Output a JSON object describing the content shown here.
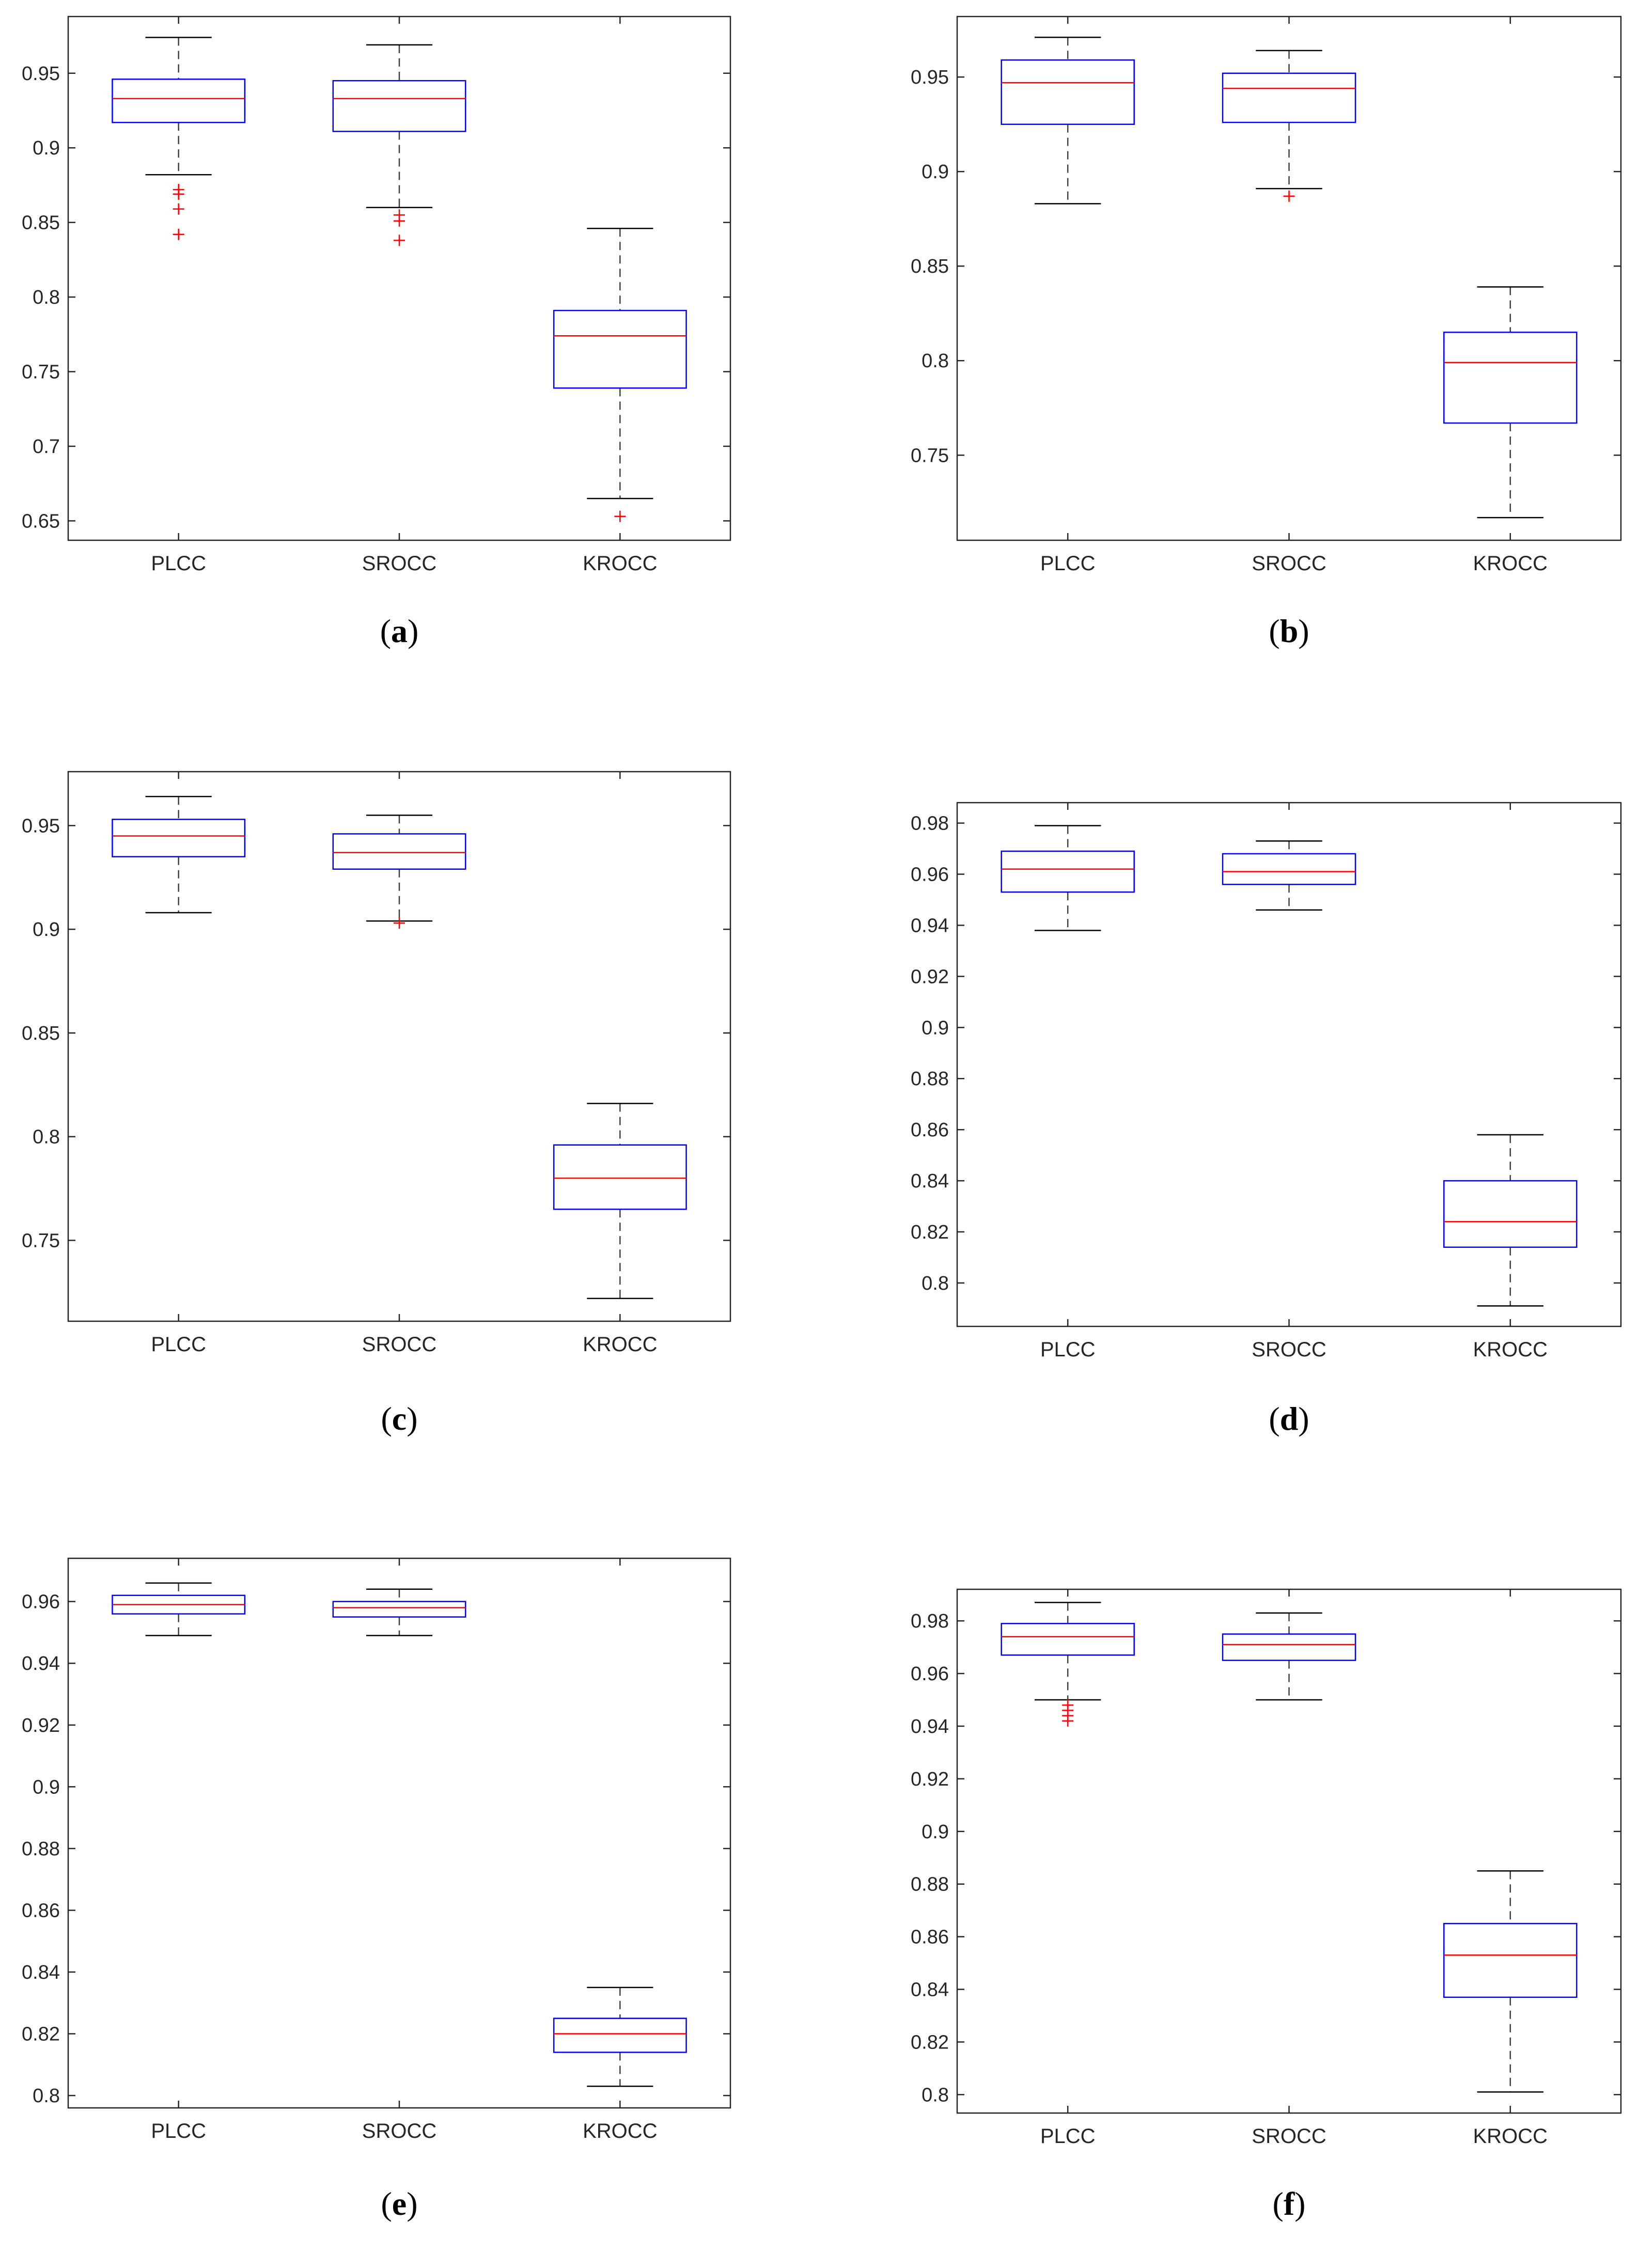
{
  "chart_data": [
    {
      "type": "boxplot",
      "panel_label": "a",
      "categories": [
        "PLCC",
        "SROCC",
        "KROCC"
      ],
      "ylim": [
        0.637,
        0.988
      ],
      "yticks": [
        0.65,
        0.7,
        0.75,
        0.8,
        0.85,
        0.9,
        0.95
      ],
      "ytick_labels": [
        "0.65",
        "0.7",
        "0.75",
        "0.8",
        "0.85",
        "0.9",
        "0.95"
      ],
      "boxes": [
        {
          "name": "PLCC",
          "whisker_low": 0.882,
          "q1": 0.917,
          "median": 0.933,
          "q3": 0.946,
          "whisker_high": 0.974,
          "outliers": [
            0.842,
            0.859,
            0.869,
            0.872
          ]
        },
        {
          "name": "SROCC",
          "whisker_low": 0.86,
          "q1": 0.911,
          "median": 0.933,
          "q3": 0.945,
          "whisker_high": 0.969,
          "outliers": [
            0.838,
            0.851,
            0.855
          ]
        },
        {
          "name": "KROCC",
          "whisker_low": 0.665,
          "q1": 0.739,
          "median": 0.774,
          "q3": 0.791,
          "whisker_high": 0.846,
          "outliers": [
            0.653
          ]
        }
      ]
    },
    {
      "type": "boxplot",
      "panel_label": "b",
      "categories": [
        "PLCC",
        "SROCC",
        "KROCC"
      ],
      "ylim": [
        0.705,
        0.982
      ],
      "yticks": [
        0.75,
        0.8,
        0.85,
        0.9,
        0.95
      ],
      "ytick_labels": [
        "0.75",
        "0.8",
        "0.85",
        "0.9",
        "0.95"
      ],
      "boxes": [
        {
          "name": "PLCC",
          "whisker_low": 0.883,
          "q1": 0.925,
          "median": 0.947,
          "q3": 0.959,
          "whisker_high": 0.971,
          "outliers": []
        },
        {
          "name": "SROCC",
          "whisker_low": 0.891,
          "q1": 0.926,
          "median": 0.944,
          "q3": 0.952,
          "whisker_high": 0.964,
          "outliers": [
            0.887
          ]
        },
        {
          "name": "KROCC",
          "whisker_low": 0.717,
          "q1": 0.767,
          "median": 0.799,
          "q3": 0.815,
          "whisker_high": 0.839,
          "outliers": []
        }
      ]
    },
    {
      "type": "boxplot",
      "panel_label": "c",
      "categories": [
        "PLCC",
        "SROCC",
        "KROCC"
      ],
      "ylim": [
        0.711,
        0.976
      ],
      "yticks": [
        0.75,
        0.8,
        0.85,
        0.9,
        0.95
      ],
      "ytick_labels": [
        "0.75",
        "0.8",
        "0.85",
        "0.9",
        "0.95"
      ],
      "boxes": [
        {
          "name": "PLCC",
          "whisker_low": 0.908,
          "q1": 0.935,
          "median": 0.945,
          "q3": 0.953,
          "whisker_high": 0.964,
          "outliers": []
        },
        {
          "name": "SROCC",
          "whisker_low": 0.904,
          "q1": 0.929,
          "median": 0.937,
          "q3": 0.946,
          "whisker_high": 0.955,
          "outliers": [
            0.903
          ]
        },
        {
          "name": "KROCC",
          "whisker_low": 0.722,
          "q1": 0.765,
          "median": 0.78,
          "q3": 0.796,
          "whisker_high": 0.816,
          "outliers": []
        }
      ]
    },
    {
      "type": "boxplot",
      "panel_label": "d",
      "categories": [
        "PLCC",
        "SROCC",
        "KROCC"
      ],
      "ylim": [
        0.783,
        0.988
      ],
      "yticks": [
        0.8,
        0.82,
        0.84,
        0.86,
        0.88,
        0.9,
        0.92,
        0.94,
        0.96,
        0.98
      ],
      "ytick_labels": [
        "0.8",
        "0.82",
        "0.84",
        "0.86",
        "0.88",
        "0.9",
        "0.92",
        "0.94",
        "0.96",
        "0.98"
      ],
      "boxes": [
        {
          "name": "PLCC",
          "whisker_low": 0.938,
          "q1": 0.953,
          "median": 0.962,
          "q3": 0.969,
          "whisker_high": 0.979,
          "outliers": []
        },
        {
          "name": "SROCC",
          "whisker_low": 0.946,
          "q1": 0.956,
          "median": 0.961,
          "q3": 0.968,
          "whisker_high": 0.973,
          "outliers": []
        },
        {
          "name": "KROCC",
          "whisker_low": 0.791,
          "q1": 0.814,
          "median": 0.824,
          "q3": 0.84,
          "whisker_high": 0.858,
          "outliers": []
        }
      ]
    },
    {
      "type": "boxplot",
      "panel_label": "e",
      "categories": [
        "PLCC",
        "SROCC",
        "KROCC"
      ],
      "ylim": [
        0.796,
        0.974
      ],
      "yticks": [
        0.8,
        0.82,
        0.84,
        0.86,
        0.88,
        0.9,
        0.92,
        0.94,
        0.96
      ],
      "ytick_labels": [
        "0.8",
        "0.82",
        "0.84",
        "0.86",
        "0.88",
        "0.9",
        "0.92",
        "0.94",
        "0.96"
      ],
      "boxes": [
        {
          "name": "PLCC",
          "whisker_low": 0.949,
          "q1": 0.956,
          "median": 0.959,
          "q3": 0.962,
          "whisker_high": 0.966,
          "outliers": []
        },
        {
          "name": "SROCC",
          "whisker_low": 0.949,
          "q1": 0.955,
          "median": 0.958,
          "q3": 0.96,
          "whisker_high": 0.964,
          "outliers": []
        },
        {
          "name": "KROCC",
          "whisker_low": 0.803,
          "q1": 0.814,
          "median": 0.82,
          "q3": 0.825,
          "whisker_high": 0.835,
          "outliers": []
        }
      ]
    },
    {
      "type": "boxplot",
      "panel_label": "f",
      "categories": [
        "PLCC",
        "SROCC",
        "KROCC"
      ],
      "ylim": [
        0.793,
        0.992
      ],
      "yticks": [
        0.8,
        0.82,
        0.84,
        0.86,
        0.88,
        0.9,
        0.92,
        0.94,
        0.96,
        0.98
      ],
      "ytick_labels": [
        "0.8",
        "0.82",
        "0.84",
        "0.86",
        "0.88",
        "0.9",
        "0.92",
        "0.94",
        "0.96",
        "0.98"
      ],
      "boxes": [
        {
          "name": "PLCC",
          "whisker_low": 0.95,
          "q1": 0.967,
          "median": 0.974,
          "q3": 0.979,
          "whisker_high": 0.987,
          "outliers": [
            0.942,
            0.944,
            0.946,
            0.948
          ]
        },
        {
          "name": "SROCC",
          "whisker_low": 0.95,
          "q1": 0.965,
          "median": 0.971,
          "q3": 0.975,
          "whisker_high": 0.983,
          "outliers": []
        },
        {
          "name": "KROCC",
          "whisker_low": 0.801,
          "q1": 0.837,
          "median": 0.853,
          "q3": 0.865,
          "whisker_high": 0.885,
          "outliers": []
        }
      ]
    }
  ],
  "colors": {
    "box": "#0000ff",
    "median": "#ff0000",
    "whisker": "#000000",
    "outlier": "#ff0000",
    "axis": "#262626"
  }
}
